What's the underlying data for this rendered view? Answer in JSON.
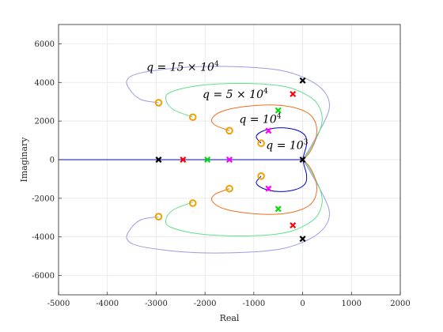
{
  "chart_data": {
    "type": "line",
    "title": "",
    "xlabel": "Real",
    "ylabel": "Imaginary",
    "xlim": [
      -5000,
      2000
    ],
    "ylim": [
      -7000,
      7000
    ],
    "xticks": [
      -5000,
      -4000,
      -3000,
      -2000,
      -1000,
      0,
      1000,
      2000
    ],
    "yticks": [
      -6000,
      -4000,
      -2000,
      0,
      2000,
      4000,
      6000
    ],
    "xtick_labels": [
      "-5000",
      "-4000",
      "-3000",
      "-2000",
      "-1000",
      "0",
      "1000",
      "2000"
    ],
    "ytick_labels": [
      "-6000",
      "-4000",
      "-2000",
      "0",
      "2000",
      "4000",
      "6000"
    ],
    "grid": true,
    "real_axis_locus": {
      "color": "#0000ff",
      "from": -5000,
      "to": 0
    },
    "series": [
      {
        "color": "#9a9ae6",
        "points": [
          [
            0,
            0
          ],
          [
            150,
            600
          ],
          [
            450,
            2000
          ],
          [
            550,
            2800
          ],
          [
            450,
            3500
          ],
          [
            150,
            4100
          ],
          [
            -400,
            4600
          ],
          [
            -1200,
            4800
          ],
          [
            -2300,
            4800
          ],
          [
            -3300,
            4500
          ],
          [
            -3600,
            4100
          ],
          [
            -3500,
            3500
          ],
          [
            -3300,
            3100
          ],
          [
            -2950,
            2950
          ]
        ],
        "zeros": [
          [
            -2950,
            2950
          ],
          [
            -2950,
            -2950
          ]
        ],
        "poles": [
          [
            0,
            4100
          ],
          [
            0,
            -4100
          ],
          [
            -2950,
            0
          ]
        ],
        "zero_color": "#f0a000",
        "pole_color": "#000000"
      },
      {
        "color": "#5fe08a",
        "points": [
          [
            0,
            0
          ],
          [
            150,
            500
          ],
          [
            350,
            1500
          ],
          [
            400,
            2200
          ],
          [
            300,
            2900
          ],
          [
            50,
            3400
          ],
          [
            -400,
            3800
          ],
          [
            -1200,
            3950
          ],
          [
            -2100,
            3850
          ],
          [
            -2700,
            3500
          ],
          [
            -2800,
            3100
          ],
          [
            -2650,
            2600
          ],
          [
            -2250,
            2200
          ]
        ],
        "zeros": [
          [
            -2250,
            2200
          ],
          [
            -2250,
            -2250
          ]
        ],
        "poles": [
          [
            -200,
            3400
          ],
          [
            -200,
            -3400
          ],
          [
            -2450,
            0
          ]
        ],
        "zero_color": "#f0a000",
        "pole_color": "#ff0000"
      },
      {
        "color": "#f07020",
        "points": [
          [
            0,
            0
          ],
          [
            150,
            400
          ],
          [
            280,
            1200
          ],
          [
            250,
            2000
          ],
          [
            50,
            2500
          ],
          [
            -400,
            2800
          ],
          [
            -1000,
            2800
          ],
          [
            -1600,
            2550
          ],
          [
            -1850,
            2150
          ],
          [
            -1800,
            1800
          ],
          [
            -1500,
            1500
          ]
        ],
        "zeros": [
          [
            -1500,
            1500
          ],
          [
            -1500,
            -1500
          ]
        ],
        "poles": [
          [
            -500,
            2550
          ],
          [
            -500,
            -2550
          ],
          [
            -1950,
            0
          ]
        ],
        "zero_color": "#f0a000",
        "pole_color": "#00e000"
      },
      {
        "color": "#0000cc",
        "points": [
          [
            0,
            0
          ],
          [
            30,
            300
          ],
          [
            80,
            800
          ],
          [
            50,
            1250
          ],
          [
            -150,
            1550
          ],
          [
            -500,
            1650
          ],
          [
            -800,
            1500
          ],
          [
            -950,
            1200
          ],
          [
            -850,
            850
          ]
        ],
        "zeros": [
          [
            -850,
            850
          ],
          [
            -850,
            -850
          ]
        ],
        "poles": [
          [
            -700,
            1500
          ],
          [
            -700,
            -1500
          ],
          [
            -1500,
            0
          ]
        ],
        "zero_color": "#f0a000",
        "pole_color": "#ff00ff"
      }
    ],
    "origin_pole": [
      0,
      0
    ],
    "annotations": [
      {
        "base": "q = 15 × 10",
        "exp": "4",
        "x": -3200,
        "y": 4600
      },
      {
        "base": "q = 5 × 10",
        "exp": "4",
        "x": -2050,
        "y": 3200
      },
      {
        "base": "q = 10",
        "exp": "4",
        "x": -1300,
        "y": 1900
      },
      {
        "base": "q = 10",
        "exp": "3",
        "x": -750,
        "y": 550
      }
    ]
  }
}
